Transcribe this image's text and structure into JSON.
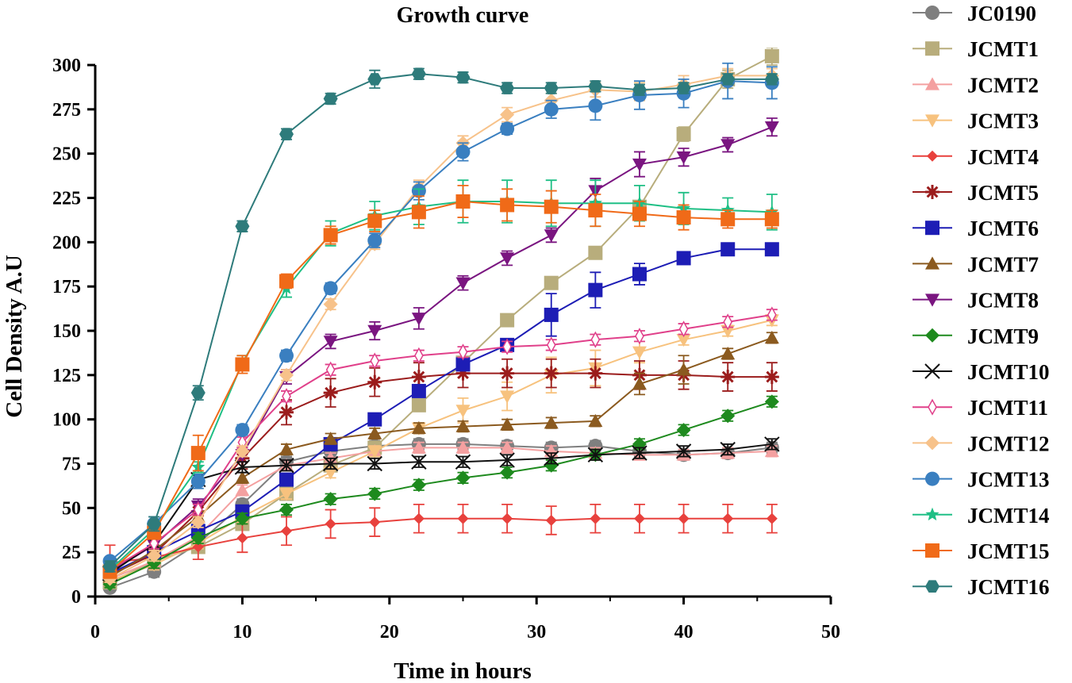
{
  "chart_data": {
    "type": "line",
    "title": "Growth curve",
    "xlabel": "Time in hours",
    "ylabel": "Cell Density A.U",
    "xlim": [
      0,
      50
    ],
    "ylim": [
      0,
      300
    ],
    "xticks": [
      "0",
      "10",
      "20",
      "30",
      "40",
      "50"
    ],
    "yticks": [
      "0",
      "25",
      "50",
      "75",
      "100",
      "125",
      "150",
      "175",
      "200",
      "225",
      "250",
      "275",
      "300"
    ],
    "x": [
      1,
      4,
      7,
      10,
      13,
      16,
      19,
      22,
      25,
      28,
      31,
      34,
      37,
      40,
      43,
      46
    ],
    "legend_position": "right",
    "series": [
      {
        "name": "JC0190",
        "color": "#7f7f7f",
        "marker": "circle",
        "values": [
          5,
          14,
          30,
          52,
          76,
          82,
          85,
          86,
          86,
          85,
          84,
          85,
          82,
          80,
          81,
          84
        ],
        "errors": [
          2,
          3,
          3,
          3,
          3,
          3,
          3,
          3,
          3,
          3,
          3,
          3,
          3,
          3,
          3,
          3
        ]
      },
      {
        "name": "JCMT1",
        "color": "#b8ad7c",
        "marker": "square",
        "values": [
          8,
          20,
          28,
          41,
          58,
          74,
          84,
          108,
          132,
          156,
          177,
          194,
          220,
          261,
          292,
          305
        ],
        "errors": [
          2,
          3,
          3,
          3,
          3,
          3,
          3,
          3,
          3,
          3,
          3,
          3,
          3,
          4,
          5,
          5
        ]
      },
      {
        "name": "JCMT2",
        "color": "#f4a0a0",
        "marker": "triangle-up",
        "values": [
          10,
          20,
          34,
          60,
          74,
          78,
          82,
          84,
          84,
          84,
          82,
          81,
          80,
          80,
          81,
          82
        ],
        "errors": [
          2,
          3,
          3,
          3,
          3,
          3,
          3,
          3,
          3,
          3,
          3,
          3,
          3,
          3,
          3,
          3
        ]
      },
      {
        "name": "JCMT3",
        "color": "#f7c27e",
        "marker": "triangle-down",
        "values": [
          9,
          18,
          30,
          45,
          58,
          70,
          82,
          95,
          105,
          113,
          125,
          129,
          138,
          145,
          150,
          156
        ],
        "errors": [
          2,
          3,
          3,
          3,
          3,
          3,
          3,
          3,
          7,
          8,
          10,
          10,
          6,
          3,
          3,
          3
        ]
      },
      {
        "name": "JCMT4",
        "color": "#e8413d",
        "marker": "diamond-small",
        "values": [
          19,
          22,
          28,
          33,
          37,
          41,
          42,
          44,
          44,
          44,
          43,
          44,
          44,
          44,
          44,
          44
        ],
        "errors": [
          10,
          6,
          7,
          8,
          8,
          8,
          8,
          8,
          8,
          8,
          8,
          8,
          8,
          8,
          8,
          8
        ]
      },
      {
        "name": "JCMT5",
        "color": "#9b1c1c",
        "marker": "asterisk",
        "values": [
          12,
          24,
          48,
          78,
          104,
          115,
          121,
          124,
          126,
          126,
          126,
          126,
          125,
          125,
          124,
          124
        ],
        "errors": [
          3,
          4,
          5,
          6,
          7,
          8,
          8,
          8,
          8,
          8,
          8,
          8,
          8,
          8,
          8,
          8
        ]
      },
      {
        "name": "JCMT6",
        "color": "#1d1db5",
        "marker": "square",
        "values": [
          13,
          25,
          37,
          48,
          66,
          86,
          100,
          116,
          131,
          142,
          159,
          173,
          182,
          191,
          196,
          196
        ],
        "errors": [
          3,
          3,
          3,
          3,
          3,
          3,
          3,
          3,
          3,
          3,
          12,
          10,
          6,
          3,
          3,
          3
        ]
      },
      {
        "name": "JCMT7",
        "color": "#8b5a1f",
        "marker": "triangle-up",
        "values": [
          11,
          26,
          45,
          67,
          83,
          89,
          92,
          95,
          96,
          97,
          98,
          99,
          120,
          128,
          137,
          146
        ],
        "errors": [
          2,
          3,
          3,
          3,
          3,
          3,
          3,
          3,
          3,
          3,
          3,
          3,
          6,
          8,
          3,
          3
        ]
      },
      {
        "name": "JCMT8",
        "color": "#7a1580",
        "marker": "triangle-down",
        "values": [
          14,
          29,
          51,
          80,
          124,
          144,
          150,
          157,
          177,
          191,
          204,
          229,
          244,
          248,
          255,
          265
        ],
        "errors": [
          3,
          3,
          4,
          4,
          4,
          4,
          5,
          6,
          4,
          4,
          4,
          7,
          7,
          5,
          4,
          5
        ]
      },
      {
        "name": "JCMT9",
        "color": "#1e8a1e",
        "marker": "diamond",
        "values": [
          7,
          19,
          33,
          44,
          49,
          55,
          58,
          63,
          67,
          70,
          74,
          80,
          86,
          94,
          102,
          110
        ],
        "errors": [
          2,
          3,
          3,
          3,
          3,
          3,
          3,
          3,
          3,
          3,
          3,
          3,
          3,
          3,
          3,
          3
        ]
      },
      {
        "name": "JCMT10",
        "color": "#111111",
        "marker": "x",
        "values": [
          13,
          30,
          66,
          73,
          74,
          75,
          75,
          76,
          76,
          77,
          78,
          80,
          81,
          82,
          83,
          86
        ],
        "errors": [
          2,
          3,
          3,
          3,
          3,
          3,
          3,
          3,
          3,
          3,
          3,
          3,
          3,
          3,
          3,
          3
        ]
      },
      {
        "name": "JCMT11",
        "color": "#e0408a",
        "marker": "diamond-open",
        "values": [
          15,
          30,
          49,
          87,
          113,
          128,
          133,
          136,
          138,
          141,
          142,
          145,
          147,
          151,
          155,
          159
        ],
        "errors": [
          2,
          3,
          3,
          3,
          3,
          3,
          3,
          3,
          3,
          3,
          3,
          3,
          3,
          3,
          3,
          3
        ]
      },
      {
        "name": "JCMT12",
        "color": "#f7c28a",
        "marker": "diamond",
        "values": [
          10,
          23,
          42,
          82,
          125,
          165,
          199,
          231,
          256,
          272,
          280,
          286,
          285,
          289,
          294,
          294
        ],
        "errors": [
          2,
          3,
          3,
          3,
          3,
          3,
          3,
          4,
          4,
          4,
          4,
          4,
          5,
          5,
          4,
          4
        ]
      },
      {
        "name": "JCMT13",
        "color": "#3a7fc0",
        "marker": "circle",
        "values": [
          20,
          41,
          65,
          94,
          136,
          174,
          201,
          229,
          251,
          264,
          275,
          277,
          283,
          284,
          291,
          290
        ],
        "errors": [
          2,
          4,
          4,
          3,
          3,
          3,
          4,
          5,
          5,
          3,
          5,
          8,
          8,
          8,
          10,
          9
        ]
      },
      {
        "name": "JCMT14",
        "color": "#1fbf85",
        "marker": "star",
        "values": [
          15,
          38,
          73,
          132,
          174,
          205,
          215,
          220,
          223,
          223,
          222,
          222,
          222,
          219,
          218,
          217
        ],
        "errors": [
          3,
          3,
          3,
          4,
          5,
          7,
          8,
          10,
          12,
          12,
          13,
          13,
          10,
          9,
          7,
          10
        ]
      },
      {
        "name": "JCMT15",
        "color": "#f06a18",
        "marker": "square",
        "values": [
          14,
          36,
          81,
          131,
          178,
          204,
          212,
          217,
          223,
          221,
          220,
          218,
          216,
          214,
          213,
          213
        ],
        "errors": [
          3,
          3,
          10,
          5,
          4,
          5,
          6,
          9,
          9,
          9,
          9,
          9,
          7,
          7,
          5,
          5
        ]
      },
      {
        "name": "JCMT16",
        "color": "#2e7b7b",
        "marker": "hexagon",
        "values": [
          17,
          41,
          115,
          209,
          261,
          281,
          292,
          295,
          293,
          287,
          287,
          288,
          286,
          287,
          292,
          292
        ],
        "errors": [
          3,
          4,
          4,
          3,
          3,
          3,
          5,
          3,
          3,
          3,
          3,
          3,
          3,
          3,
          3,
          3
        ]
      }
    ]
  }
}
